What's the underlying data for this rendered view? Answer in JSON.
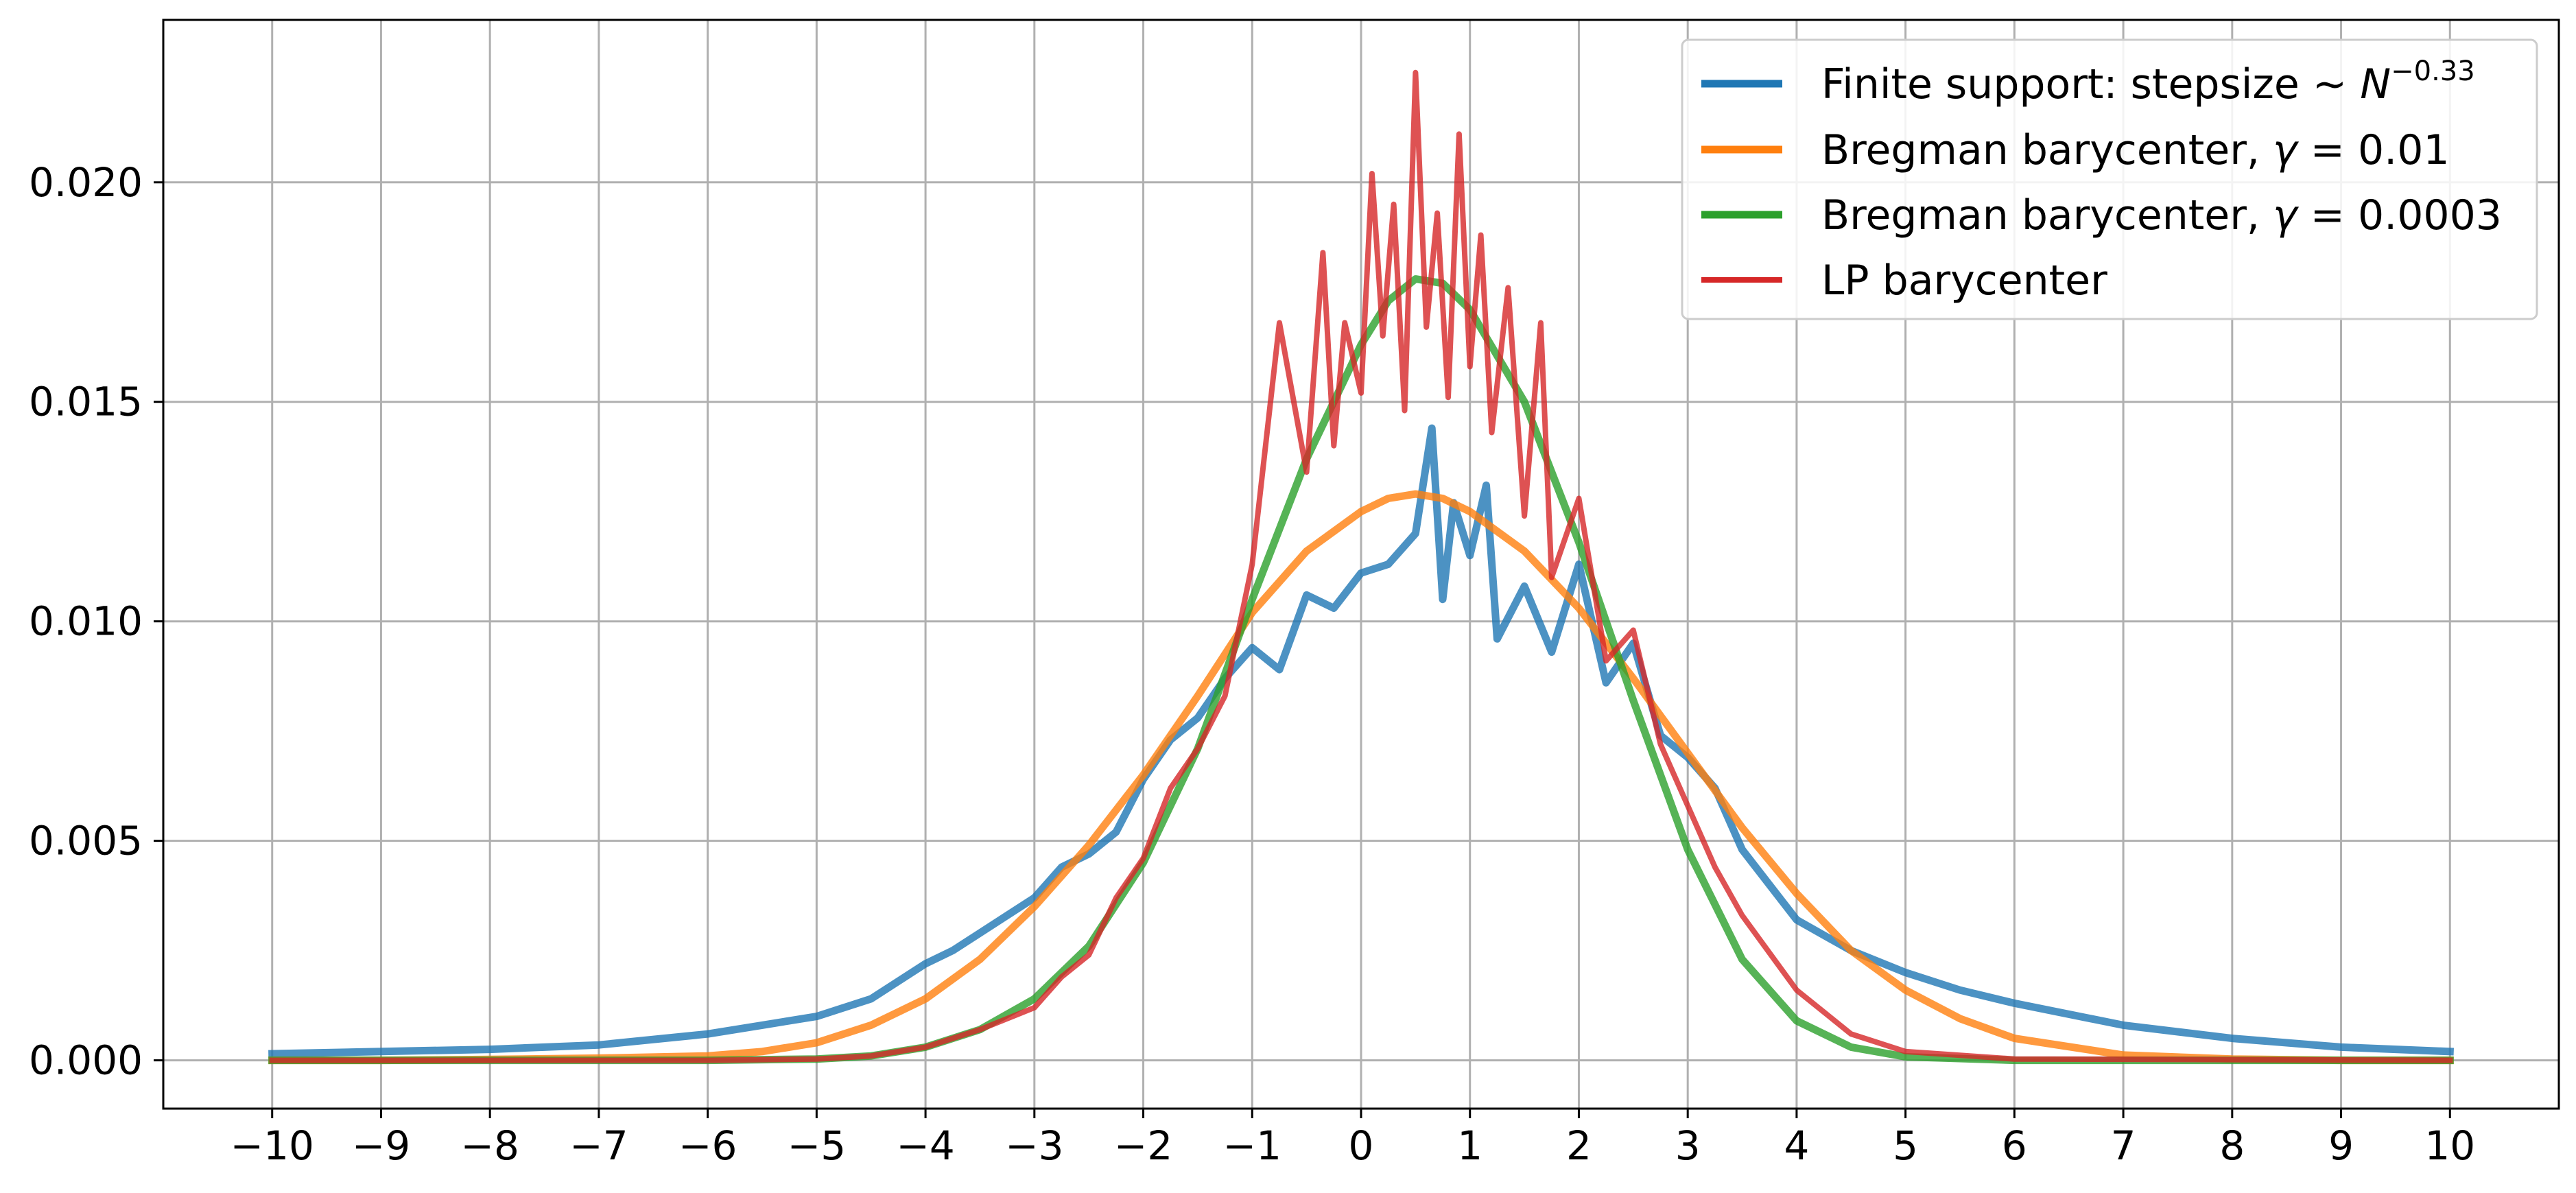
{
  "chart_data": {
    "type": "line",
    "title": "",
    "xlabel": "",
    "ylabel": "",
    "xlim": [
      -11.0,
      11.0
    ],
    "ylim": [
      -0.0011,
      0.0237
    ],
    "grid": true,
    "legend_position": "top-right",
    "x_ticks": [
      -10,
      -9,
      -8,
      -7,
      -6,
      -5,
      -4,
      -3,
      -2,
      -1,
      0,
      1,
      2,
      3,
      4,
      5,
      6,
      7,
      8,
      9,
      10
    ],
    "x_tick_labels": [
      "−10",
      "−9",
      "−8",
      "−7",
      "−6",
      "−5",
      "−4",
      "−3",
      "−2",
      "−1",
      "0",
      "1",
      "2",
      "3",
      "4",
      "5",
      "6",
      "7",
      "8",
      "9",
      "10"
    ],
    "y_ticks": [
      0.0,
      0.005,
      0.01,
      0.015,
      0.02
    ],
    "y_tick_labels": [
      "0.000",
      "0.005",
      "0.010",
      "0.015",
      "0.020"
    ],
    "series": [
      {
        "name": "Finite support: stepsize ~ N^{−0.33}",
        "legend_label": {
          "prefix": "Finite support: stepsize ~ ",
          "var": "N",
          "sup": "−0.33"
        },
        "color": "#1f77b4",
        "x": [
          -10,
          -9,
          -8,
          -7,
          -6,
          -5.5,
          -5,
          -4.5,
          -4,
          -3.75,
          -3.5,
          -3.25,
          -3,
          -2.75,
          -2.5,
          -2.25,
          -2,
          -1.75,
          -1.5,
          -1.25,
          -1,
          -0.75,
          -0.5,
          -0.25,
          0,
          0.25,
          0.5,
          0.65,
          0.75,
          0.85,
          1,
          1.15,
          1.25,
          1.5,
          1.75,
          2,
          2.25,
          2.5,
          2.75,
          3,
          3.25,
          3.5,
          4,
          4.5,
          5,
          5.5,
          6,
          7,
          8,
          9,
          10
        ],
        "y": [
          0.00015,
          0.0002,
          0.00025,
          0.00035,
          0.0006,
          0.0008,
          0.001,
          0.0014,
          0.0022,
          0.0025,
          0.0029,
          0.0033,
          0.0037,
          0.0044,
          0.0047,
          0.0052,
          0.0064,
          0.0073,
          0.0078,
          0.0087,
          0.0094,
          0.0089,
          0.0106,
          0.0103,
          0.0111,
          0.0113,
          0.012,
          0.0144,
          0.0105,
          0.0127,
          0.0115,
          0.0131,
          0.0096,
          0.0108,
          0.0093,
          0.0113,
          0.0086,
          0.0095,
          0.0074,
          0.0069,
          0.0062,
          0.0048,
          0.0032,
          0.0025,
          0.002,
          0.0016,
          0.0013,
          0.0008,
          0.0005,
          0.0003,
          0.0002
        ]
      },
      {
        "name": "Bregman barycenter, γ = 0.01",
        "legend_label": {
          "prefix": "Bregman barycenter, ",
          "var": "γ",
          "suffix": " = 0.01"
        },
        "color": "#ff7f0e",
        "x": [
          -10,
          -9,
          -8,
          -7,
          -6,
          -5.5,
          -5,
          -4.5,
          -4,
          -3.5,
          -3,
          -2.5,
          -2,
          -1.5,
          -1,
          -0.5,
          0,
          0.25,
          0.5,
          0.75,
          1,
          1.5,
          2,
          2.5,
          3,
          3.5,
          4,
          4.5,
          5,
          5.5,
          6,
          7,
          8,
          9,
          10
        ],
        "y": [
          0.0,
          0.0,
          2e-05,
          5e-05,
          0.0001,
          0.0002,
          0.0004,
          0.0008,
          0.0014,
          0.0023,
          0.0035,
          0.0049,
          0.0065,
          0.0083,
          0.0102,
          0.0116,
          0.0125,
          0.0128,
          0.0129,
          0.0128,
          0.0125,
          0.0116,
          0.0103,
          0.0087,
          0.007,
          0.0053,
          0.0038,
          0.0025,
          0.0016,
          0.00095,
          0.0005,
          0.00012,
          3e-05,
          0.0,
          0.0
        ]
      },
      {
        "name": "Bregman barycenter, γ = 0.0003",
        "legend_label": {
          "prefix": "Bregman barycenter, ",
          "var": "γ",
          "suffix": " = 0.0003"
        },
        "color": "#2ca02c",
        "x": [
          -10,
          -6,
          -5,
          -4.5,
          -4,
          -3.5,
          -3,
          -2.5,
          -2,
          -1.5,
          -1,
          -0.5,
          0,
          0.25,
          0.5,
          0.75,
          1,
          1.5,
          2,
          2.5,
          3,
          3.5,
          4,
          4.5,
          5,
          6,
          10
        ],
        "y": [
          0.0,
          0.0,
          3e-05,
          0.0001,
          0.0003,
          0.0007,
          0.0014,
          0.0026,
          0.0045,
          0.0071,
          0.0105,
          0.0137,
          0.0163,
          0.0173,
          0.0178,
          0.0177,
          0.0171,
          0.015,
          0.0118,
          0.0082,
          0.0048,
          0.0023,
          0.0009,
          0.0003,
          8e-05,
          0.0,
          0.0
        ]
      },
      {
        "name": "LP barycenter",
        "legend_label": {
          "prefix": "LP barycenter"
        },
        "color": "#d62728",
        "x": [
          -10,
          -6,
          -5,
          -4.5,
          -4,
          -3.5,
          -3,
          -2.75,
          -2.5,
          -2.25,
          -2,
          -1.75,
          -1.5,
          -1.25,
          -1,
          -0.75,
          -0.5,
          -0.35,
          -0.25,
          -0.15,
          0,
          0.1,
          0.2,
          0.3,
          0.4,
          0.5,
          0.6,
          0.7,
          0.8,
          0.9,
          1.0,
          1.1,
          1.2,
          1.35,
          1.5,
          1.65,
          1.75,
          2,
          2.25,
          2.5,
          2.75,
          3,
          3.25,
          3.5,
          4,
          4.5,
          5,
          6,
          10
        ],
        "y": [
          0.0,
          0.0,
          3e-05,
          0.0001,
          0.0003,
          0.0007,
          0.0012,
          0.0019,
          0.0024,
          0.0037,
          0.0046,
          0.0062,
          0.0071,
          0.0083,
          0.0113,
          0.0168,
          0.0134,
          0.0184,
          0.014,
          0.0168,
          0.0152,
          0.0202,
          0.0165,
          0.0195,
          0.0148,
          0.0225,
          0.0167,
          0.0193,
          0.0151,
          0.0211,
          0.0158,
          0.0188,
          0.0143,
          0.0176,
          0.0124,
          0.0168,
          0.011,
          0.0128,
          0.0091,
          0.0098,
          0.0072,
          0.0058,
          0.0044,
          0.0033,
          0.0016,
          0.0006,
          0.0002,
          3e-05,
          0.0
        ]
      }
    ]
  }
}
